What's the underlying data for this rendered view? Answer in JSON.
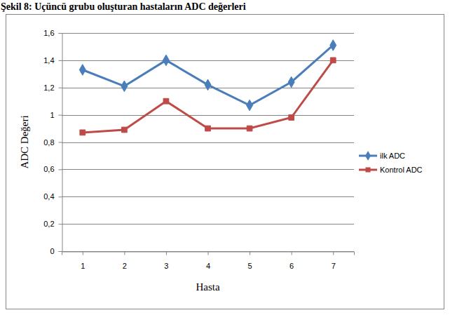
{
  "chart_data": {
    "type": "line",
    "title": "Şekil 8: Uçüncü grubu oluşturan hastaların ADC değerleri",
    "x_label": "Hasta",
    "y_label": "ADC Değeri",
    "categories": [
      "1",
      "2",
      "3",
      "4",
      "5",
      "6",
      "7"
    ],
    "series": [
      {
        "name": "ilk ADC",
        "color": "#4a7ebb",
        "marker": "diamond",
        "values": [
          1.33,
          1.21,
          1.4,
          1.22,
          1.07,
          1.24,
          1.51
        ]
      },
      {
        "name": "Kontrol ADC",
        "color": "#be4b48",
        "marker": "square",
        "values": [
          0.87,
          0.89,
          1.1,
          0.9,
          0.9,
          0.98,
          1.4
        ]
      }
    ],
    "ylim": [
      0,
      1.6
    ],
    "yticks": [
      0,
      {
        "value": 0.2,
        "label": "0,2"
      },
      {
        "value": 0.4,
        "label": "0,4"
      },
      {
        "value": 0.6,
        "label": "0,6"
      },
      {
        "value": 0.8,
        "label": "0,8"
      },
      1,
      {
        "value": 1.2,
        "label": "1,2"
      },
      {
        "value": 1.4,
        "label": "1,4"
      },
      {
        "value": 1.6,
        "label": "1,6"
      }
    ],
    "grid": true,
    "legend": "right"
  }
}
